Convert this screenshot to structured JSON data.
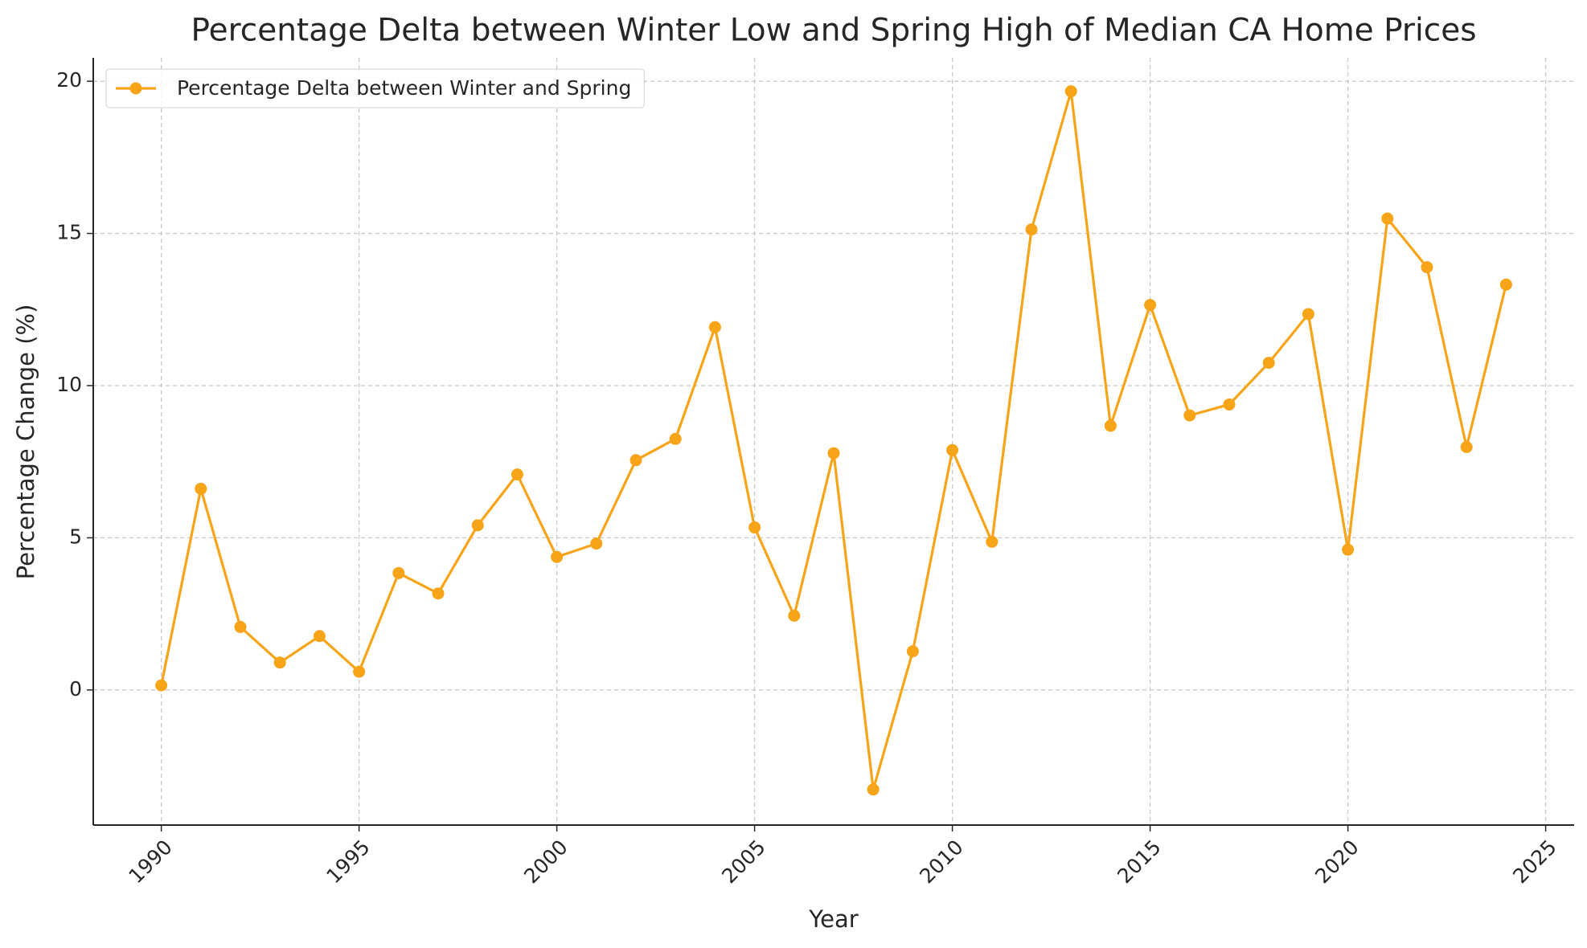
{
  "chart_data": {
    "type": "line",
    "title": "Percentage Delta between Winter Low and Spring High of Median CA Home Prices",
    "xlabel": "Year",
    "ylabel": "Percentage Change (%)",
    "x": [
      1990,
      1991,
      1992,
      1993,
      1994,
      1995,
      1996,
      1997,
      1998,
      1999,
      2000,
      2001,
      2002,
      2003,
      2004,
      2005,
      2006,
      2007,
      2008,
      2009,
      2010,
      2011,
      2012,
      2013,
      2014,
      2015,
      2016,
      2017,
      2018,
      2019,
      2020,
      2021,
      2022,
      2023,
      2024
    ],
    "series": [
      {
        "name": "Percentage Delta between Winter and Spring",
        "color": "#f7a418",
        "values": [
          0.15,
          6.61,
          2.07,
          0.9,
          1.77,
          0.6,
          3.84,
          3.17,
          5.41,
          7.08,
          4.37,
          4.81,
          7.55,
          8.25,
          11.92,
          5.34,
          2.44,
          7.78,
          -3.27,
          1.27,
          7.88,
          4.87,
          15.13,
          19.67,
          8.68,
          12.65,
          9.02,
          9.38,
          10.75,
          12.35,
          4.61,
          15.49,
          13.89,
          7.98,
          13.32
        ]
      }
    ],
    "xlim": [
      1988.28,
      2025.72
    ],
    "xticks": [
      1990,
      1995,
      2000,
      2005,
      2010,
      2015,
      2020,
      2025
    ],
    "ylim": [
      -4.44,
      20.77
    ],
    "yticks": [
      0,
      5,
      10,
      15,
      20
    ],
    "grid": true,
    "legend": "upper left",
    "marker": "circle"
  }
}
